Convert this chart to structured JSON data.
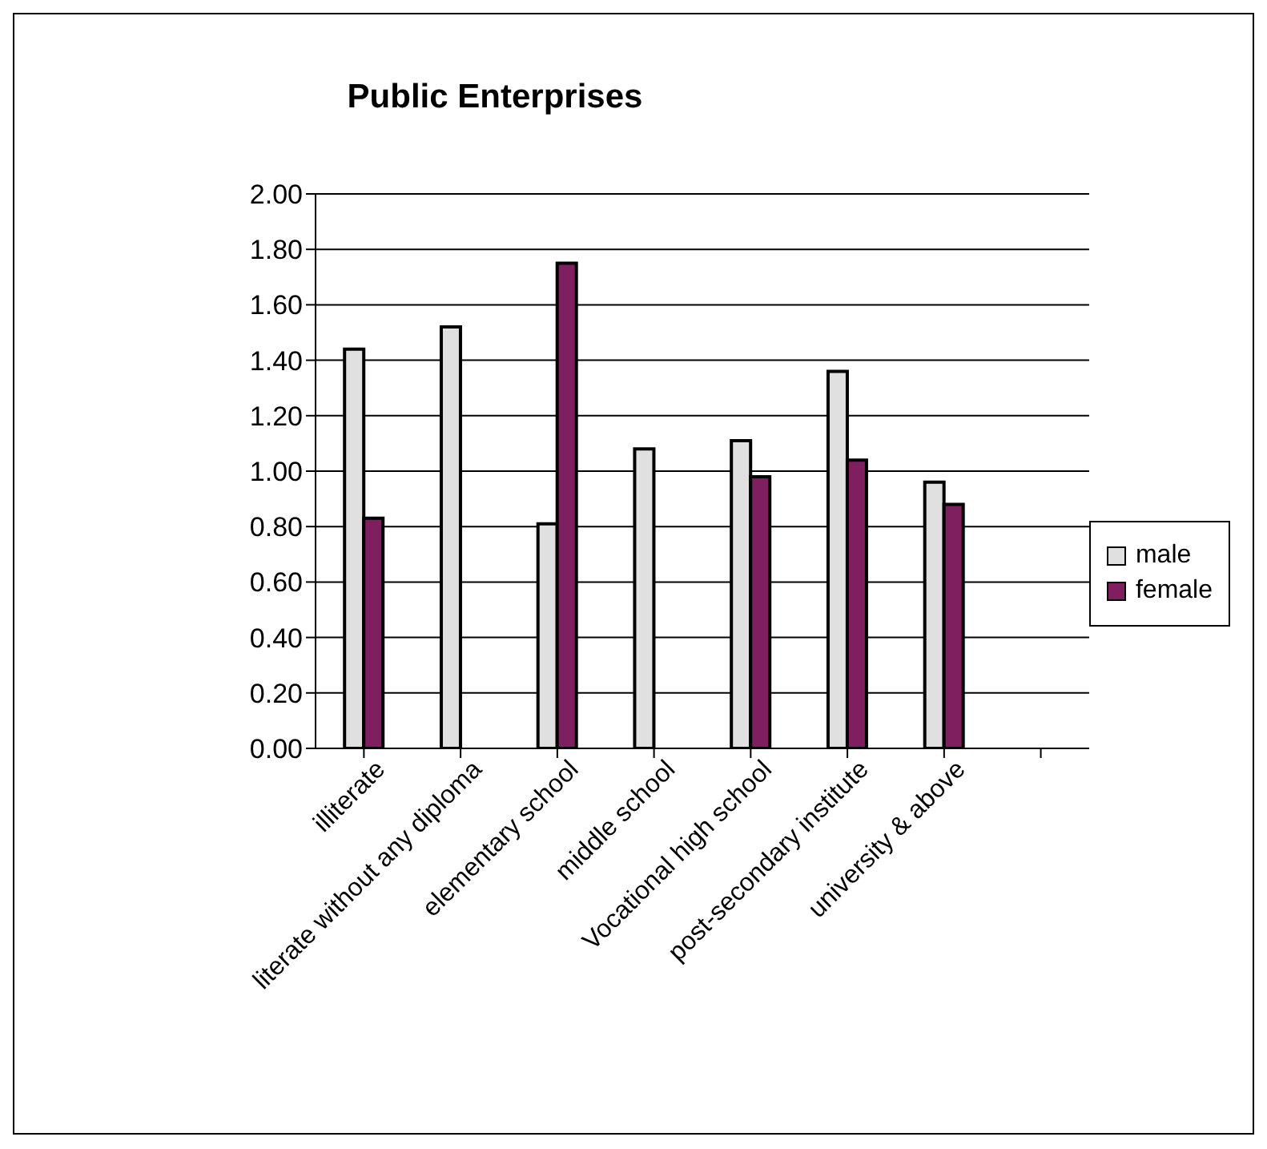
{
  "chart_data": {
    "type": "bar",
    "title": "Public Enterprises",
    "categories": [
      "illiterate",
      "literate without any diploma",
      "elementary school",
      "middle school",
      "Vocational high school",
      "post-secondary institute",
      "university & above",
      null
    ],
    "series": [
      {
        "name": "male",
        "color": "#e0e0e0",
        "values": [
          1.44,
          1.52,
          0.81,
          1.08,
          1.11,
          1.36,
          0.96,
          null
        ]
      },
      {
        "name": "female",
        "color": "#7f1f5f",
        "values": [
          0.83,
          null,
          1.75,
          null,
          0.98,
          1.04,
          0.88,
          null
        ]
      }
    ],
    "ylim": [
      0,
      2
    ],
    "yticks": [
      {
        "value": 0,
        "label": "0.00"
      },
      {
        "value": 0.2,
        "label": "0.20"
      },
      {
        "value": 0.4,
        "label": "0.40"
      },
      {
        "value": 0.6,
        "label": "0.60"
      },
      {
        "value": 0.8,
        "label": "0.80"
      },
      {
        "value": 1,
        "label": "1.00"
      },
      {
        "value": 1.2,
        "label": "1.20"
      },
      {
        "value": 1.4,
        "label": "1.40"
      },
      {
        "value": 1.6,
        "label": "1.60"
      },
      {
        "value": 1.8,
        "label": "1.80"
      },
      {
        "value": 2,
        "label": "2.00"
      }
    ],
    "grid": "y",
    "legend": "right"
  }
}
